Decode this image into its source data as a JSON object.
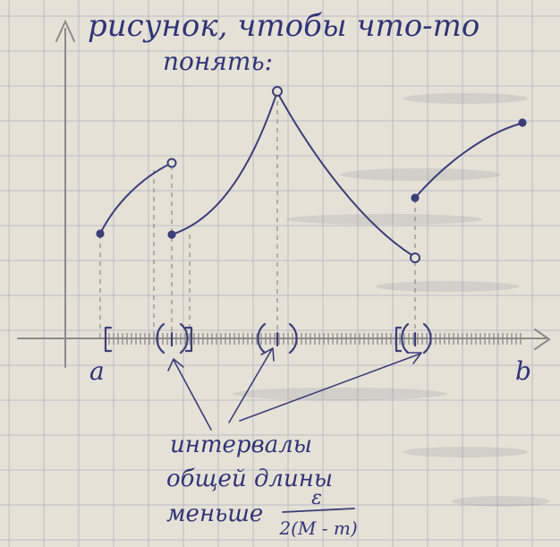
{
  "heading": {
    "line1": "рисунок, чтобы что-то",
    "line2": "понять:"
  },
  "axis_labels": {
    "left": "a",
    "right": "b"
  },
  "note": {
    "line1": "интервалы",
    "line2": "общей длины",
    "line3": "меньше",
    "fraction_numerator": "ε",
    "fraction_denominator": "2(M - m)"
  },
  "colors": {
    "paper": "#e6e1d6",
    "grid": "#b9bcc8",
    "ink": "#3a3f78",
    "pencil": "#8a8a8a"
  }
}
